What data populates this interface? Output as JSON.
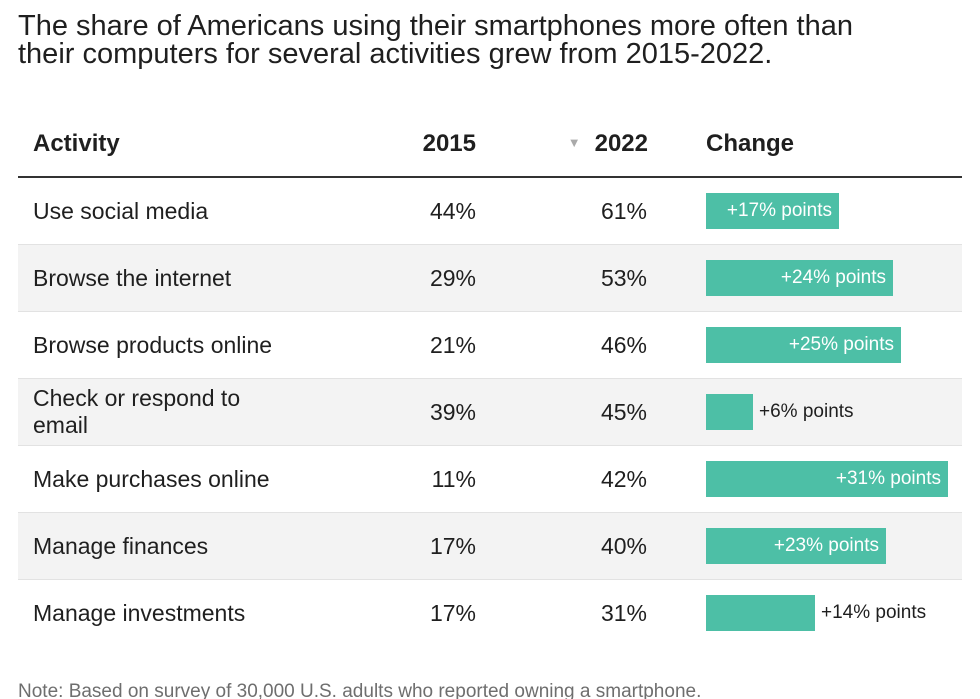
{
  "chart_data": {
    "type": "table",
    "title_lines": [
      "The share of Americans using their smartphones more often than",
      "their computers for several activities grew from 2015-2022."
    ],
    "columns": [
      "Activity",
      "2015",
      "2022",
      "Change"
    ],
    "sort_column": "2022",
    "rows": [
      {
        "activity": "Use social media",
        "v2015": "44%",
        "v2022": "61%",
        "change": 17,
        "change_label": "+17% points"
      },
      {
        "activity": "Browse the internet",
        "v2015": "29%",
        "v2022": "53%",
        "change": 24,
        "change_label": "+24% points"
      },
      {
        "activity": "Browse products online",
        "v2015": "21%",
        "v2022": "46%",
        "change": 25,
        "change_label": "+25% points"
      },
      {
        "activity": "Check or respond to email",
        "v2015": "39%",
        "v2022": "45%",
        "change": 6,
        "change_label": "+6% points"
      },
      {
        "activity": "Make purchases online",
        "v2015": "11%",
        "v2022": "42%",
        "change": 31,
        "change_label": "+31% points"
      },
      {
        "activity": "Manage finances",
        "v2015": "17%",
        "v2022": "40%",
        "change": 23,
        "change_label": "+23% points"
      },
      {
        "activity": "Manage investments",
        "v2015": "17%",
        "v2022": "31%",
        "change": 14,
        "change_label": "+14% points"
      }
    ],
    "change_max": 31,
    "note": "Note: Based on survey of 30,000 U.S. adults who reported owning a smartphone."
  },
  "colors": {
    "bar": "#4dbfa6",
    "stripe": "#f3f3f3"
  },
  "icons": {
    "sort": "sort-down-icon"
  }
}
